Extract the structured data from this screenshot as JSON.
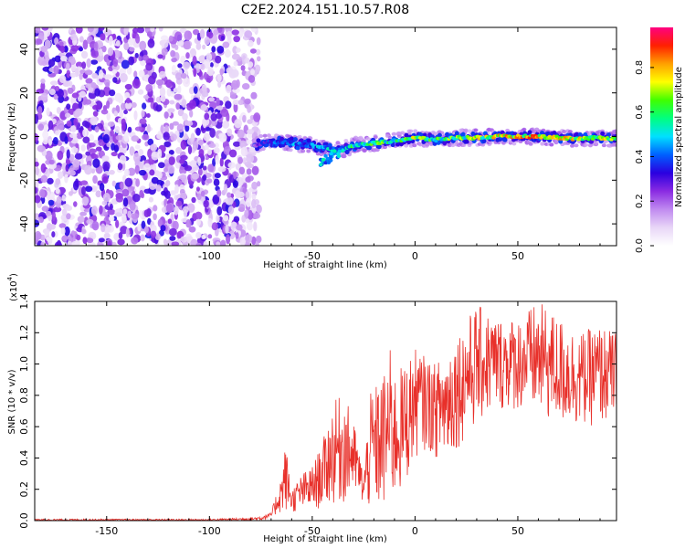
{
  "title": "C2E2.2024.151.10.57.R08",
  "chart_data": [
    {
      "type": "heatmap",
      "name": "spectrogram",
      "xlabel": "Height of straight line (km)",
      "ylabel": "Frequency (Hz)",
      "xlim": [
        -185,
        98
      ],
      "ylim": [
        -50,
        50
      ],
      "xticks": [
        -150,
        -100,
        -50,
        0,
        50
      ],
      "yticks": [
        -40,
        -20,
        0,
        20,
        40
      ],
      "colorbar": {
        "label": "Normalized spectral amplitude",
        "range": [
          0.0,
          0.98
        ],
        "ticks": [
          0.0,
          0.2,
          0.4,
          0.6,
          0.8
        ],
        "tick_labels": [
          "0.0",
          "0.2",
          "0.4",
          "0.6",
          "0.8"
        ],
        "colormap": [
          "#ffffff",
          "#e8d6f7",
          "#c08af0",
          "#8a2be2",
          "#2a00e0",
          "#0060ff",
          "#00e0ff",
          "#00ff80",
          "#40ff00",
          "#ffff00",
          "#ffa000",
          "#ff2000",
          "#ff0080"
        ]
      },
      "noise_region_x": [
        -185,
        -78
      ],
      "noise_amplitude_max": 0.35,
      "signal_ridge": {
        "x": [
          -78,
          -70,
          -60,
          -50,
          -45,
          -40,
          -35,
          -30,
          -20,
          -10,
          0,
          10,
          20,
          30,
          40,
          50,
          60,
          70,
          80,
          90,
          98
        ],
        "freq": [
          -4,
          -2,
          -3,
          -4,
          -5,
          -6,
          -6,
          -4,
          -3,
          -2,
          -0.5,
          -1.5,
          -0.5,
          -0.5,
          0,
          0,
          0,
          -0.5,
          -1,
          -0.5,
          -1
        ],
        "amplitude": [
          0.3,
          0.45,
          0.5,
          0.5,
          0.55,
          0.6,
          0.6,
          0.7,
          0.7,
          0.72,
          0.8,
          0.7,
          0.75,
          0.78,
          0.85,
          0.9,
          0.9,
          0.85,
          0.85,
          0.8,
          0.8
        ]
      }
    },
    {
      "type": "line",
      "name": "snr",
      "xlabel": "Height of straight line (km)",
      "ylabel": "SNR (10 * v/v)",
      "multiplier_label": "(x10",
      "multiplier_exp": "4",
      "multiplier_close": ")",
      "xlim": [
        -185,
        98
      ],
      "ylim": [
        0.0,
        1.4
      ],
      "xticks": [
        -150,
        -100,
        -50,
        0,
        50
      ],
      "yticks": [
        0.0,
        0.2,
        0.4,
        0.6,
        0.8,
        1.0,
        1.2,
        1.4
      ],
      "ytick_labels": [
        "0.0",
        "0.2",
        "0.4",
        "0.6",
        "0.8",
        "1.0",
        "1.2",
        "1.4"
      ],
      "color": "#e8302a",
      "envelope": {
        "x": [
          -185,
          -100,
          -80,
          -75,
          -70,
          -65,
          -63,
          -60,
          -55,
          -50,
          -45,
          -40,
          -35,
          -30,
          -28,
          -25,
          -22,
          -20,
          -15,
          -12,
          -10,
          -5,
          0,
          5,
          10,
          15,
          20,
          30,
          40,
          50,
          60,
          70,
          80,
          90,
          98
        ],
        "low": [
          0.0,
          0.0,
          0.0,
          0.0,
          0.02,
          0.05,
          0.05,
          0.05,
          0.06,
          0.06,
          0.08,
          0.1,
          0.1,
          0.15,
          0.15,
          0.1,
          0.05,
          0.05,
          0.05,
          0.1,
          0.1,
          0.2,
          0.4,
          0.45,
          0.4,
          0.35,
          0.45,
          0.6,
          0.7,
          0.7,
          0.65,
          0.6,
          0.6,
          0.6,
          0.65
        ],
        "high": [
          0.01,
          0.01,
          0.02,
          0.03,
          0.05,
          0.3,
          0.5,
          0.2,
          0.3,
          0.35,
          0.5,
          0.75,
          0.82,
          0.65,
          0.5,
          0.3,
          0.8,
          0.85,
          0.95,
          1.1,
          0.95,
          1.0,
          1.1,
          1.05,
          1.0,
          1.1,
          1.2,
          1.38,
          1.3,
          1.3,
          1.4,
          1.3,
          1.2,
          1.25,
          1.2
        ]
      }
    }
  ]
}
